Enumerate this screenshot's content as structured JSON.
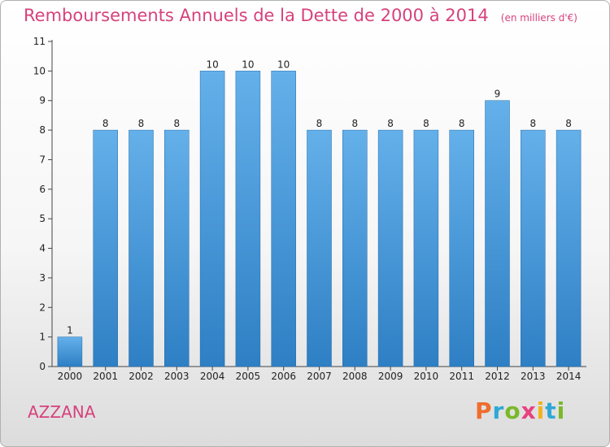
{
  "header": {
    "title": "Remboursements Annuels de la Dette de 2000 à 2014",
    "subtitle": "(en milliers d'€)"
  },
  "footer": {
    "commune": "AZZANA",
    "logo": "Proxiti"
  },
  "colors": {
    "title": "#d6427c",
    "bar_top": "#64b0ea",
    "bar_bottom": "#2e7fc4",
    "bar_edge": "#1f6aa8",
    "axis": "#444444",
    "logo_letters": [
      "#ef6d2e",
      "#2ea8d6",
      "#7ab829",
      "#e8407f",
      "#f2b31b",
      "#2ea8d6",
      "#7ab829"
    ]
  },
  "chart_data": {
    "type": "bar",
    "categories": [
      "2000",
      "2001",
      "2002",
      "2003",
      "2004",
      "2005",
      "2006",
      "2007",
      "2008",
      "2009",
      "2010",
      "2011",
      "2012",
      "2013",
      "2014"
    ],
    "values": [
      1,
      8,
      8,
      8,
      10,
      10,
      10,
      8,
      8,
      8,
      8,
      8,
      9,
      8,
      8
    ],
    "data_labels": [
      "1",
      "8",
      "8",
      "8",
      "10",
      "10",
      "10",
      "8",
      "8",
      "8",
      "8",
      "8",
      "9",
      "8",
      "8"
    ],
    "yticks": [
      "0",
      "1",
      "2",
      "3",
      "4",
      "5",
      "6",
      "7",
      "8",
      "9",
      "10",
      "11"
    ],
    "ylim": [
      0,
      11
    ],
    "grid": false,
    "legend": "none"
  }
}
